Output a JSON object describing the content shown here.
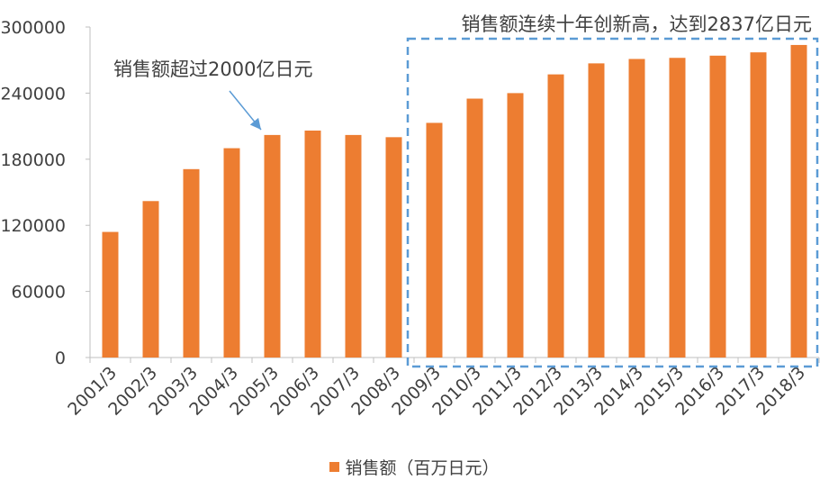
{
  "chart_data": {
    "type": "bar",
    "categories": [
      "2001/3",
      "2002/3",
      "2003/3",
      "2004/3",
      "2005/3",
      "2006/3",
      "2007/3",
      "2008/3",
      "2009/3",
      "2010/3",
      "2011/3",
      "2012/3",
      "2013/3",
      "2014/3",
      "2015/3",
      "2016/3",
      "2017/3",
      "2018/3"
    ],
    "series": [
      {
        "name": "销售额（百万日元）",
        "color": "#ED7D31",
        "values": [
          114000,
          142000,
          171000,
          190000,
          202000,
          206000,
          202000,
          200000,
          213000,
          235000,
          240000,
          257000,
          267000,
          271000,
          272000,
          274000,
          277000,
          283700
        ]
      }
    ],
    "ylim": [
      0,
      300000
    ],
    "yticks": [
      "0",
      "60000",
      "120000",
      "180000",
      "240000",
      "300000"
    ],
    "grid": false,
    "legend_position": "bottom",
    "annotations": {
      "arrow_note": "销售额超过2000亿日元",
      "box_note": "销售额连续十年创新高，达到2837亿日元"
    },
    "arrow_color": "#5B9BD5",
    "box_color": "#5B9BD5"
  }
}
